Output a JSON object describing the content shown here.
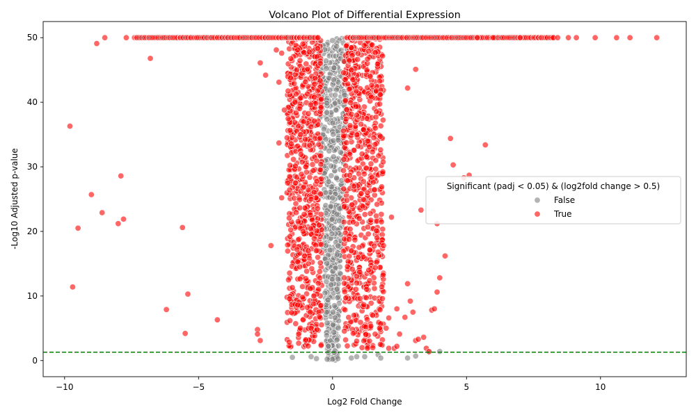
{
  "chart_data": {
    "type": "scatter",
    "title": "Volcano Plot of Differential Expression",
    "xlabel": "Log2 Fold Change",
    "ylabel": "-Log10 Adjusted p-value",
    "xlim": [
      -10.8,
      13.2
    ],
    "ylim": [
      -2.5,
      52.5
    ],
    "x_ticks": [
      -10,
      -5,
      0,
      5,
      10
    ],
    "y_ticks": [
      0,
      10,
      20,
      30,
      40,
      50
    ],
    "x_tick_labels": [
      "−10",
      "−5",
      "0",
      "5",
      "10"
    ],
    "y_tick_labels": [
      "0",
      "10",
      "20",
      "30",
      "40",
      "50"
    ],
    "grid": false,
    "threshold_line": {
      "y": 1.3,
      "color": "#008000",
      "style": "dashed"
    },
    "legend": {
      "title": "Significant (padj < 0.05) & (log2fold change > 0.5)",
      "placement": "center-right",
      "entries": [
        {
          "label": "False",
          "color": "#808080"
        },
        {
          "label": "True",
          "color": "#ff0000"
        }
      ]
    },
    "series": [
      {
        "name": "True",
        "color": "#ff0000",
        "points": [
          [
            -9.8,
            36.3
          ],
          [
            -9.7,
            11.4
          ],
          [
            -9.5,
            20.5
          ],
          [
            -9.0,
            25.7
          ],
          [
            -8.8,
            49.1
          ],
          [
            -8.6,
            22.9
          ],
          [
            -8.5,
            50
          ],
          [
            -8.0,
            21.2
          ],
          [
            -7.9,
            28.6
          ],
          [
            -7.8,
            21.9
          ],
          [
            -7.7,
            50
          ],
          [
            -6.8,
            46.8
          ],
          [
            -6.2,
            7.9
          ],
          [
            -5.6,
            20.6
          ],
          [
            -5.5,
            4.2
          ],
          [
            -5.4,
            10.3
          ],
          [
            -4.3,
            6.3
          ],
          [
            -2.8,
            4.8
          ],
          [
            -2.8,
            4.1
          ],
          [
            -2.7,
            3.1
          ],
          [
            -2.7,
            46.1
          ],
          [
            -2.5,
            44.2
          ],
          [
            -2.3,
            17.8
          ],
          [
            -2.1,
            48.1
          ],
          [
            -2.0,
            43.1
          ],
          [
            -2.0,
            33.7
          ],
          [
            -1.9,
            47.6
          ],
          [
            -1.9,
            25.2
          ],
          [
            -1.8,
            38.8
          ],
          [
            -1.7,
            34.5
          ],
          [
            -1.6,
            28.5
          ],
          [
            -1.5,
            11.3
          ],
          [
            -1.4,
            8.7
          ],
          [
            -1.3,
            8.6
          ],
          [
            -1.1,
            6.3
          ],
          [
            -1.0,
            3.2
          ],
          [
            0.9,
            3.0
          ],
          [
            1.1,
            2.0
          ],
          [
            1.3,
            1.9
          ],
          [
            1.5,
            2.0
          ],
          [
            1.5,
            7.0
          ],
          [
            1.6,
            14.4
          ],
          [
            1.7,
            16.8
          ],
          [
            1.9,
            17.8
          ],
          [
            2.0,
            5.0
          ],
          [
            2.1,
            6.6
          ],
          [
            2.1,
            1.9
          ],
          [
            2.2,
            22.2
          ],
          [
            2.3,
            1.9
          ],
          [
            2.4,
            2.2
          ],
          [
            2.4,
            8.0
          ],
          [
            2.5,
            4.1
          ],
          [
            2.7,
            6.7
          ],
          [
            2.8,
            11.9
          ],
          [
            2.8,
            42.2
          ],
          [
            2.9,
            9.2
          ],
          [
            3.0,
            7.5
          ],
          [
            3.1,
            3.1
          ],
          [
            3.2,
            3.3
          ],
          [
            3.1,
            45.1
          ],
          [
            3.3,
            23.3
          ],
          [
            3.4,
            3.6
          ],
          [
            3.5,
            1.9
          ],
          [
            3.6,
            1.4
          ],
          [
            3.7,
            7.8
          ],
          [
            3.8,
            8.0
          ],
          [
            3.9,
            10.6
          ],
          [
            3.9,
            21.2
          ],
          [
            4.0,
            12.8
          ],
          [
            4.2,
            16.2
          ],
          [
            4.4,
            34.4
          ],
          [
            4.5,
            30.3
          ],
          [
            4.9,
            28.3
          ],
          [
            5.1,
            28.7
          ],
          [
            5.7,
            33.4
          ],
          [
            5.4,
            50
          ],
          [
            6.0,
            50
          ],
          [
            7.0,
            50
          ],
          [
            8.4,
            50
          ],
          [
            8.8,
            50
          ],
          [
            9.1,
            50
          ],
          [
            9.8,
            50
          ],
          [
            10.6,
            50
          ],
          [
            11.1,
            50
          ],
          [
            12.1,
            50
          ],
          [
            -1.4,
            40.0
          ],
          [
            -1.2,
            35.0
          ],
          [
            -1.0,
            30.0
          ],
          [
            -0.8,
            25.0
          ],
          [
            -1.1,
            20.0
          ],
          [
            -0.9,
            15.0
          ],
          [
            -0.7,
            10.0
          ],
          [
            -0.8,
            5.0
          ],
          [
            0.7,
            45.0
          ],
          [
            0.9,
            38.0
          ],
          [
            1.1,
            32.0
          ],
          [
            0.8,
            27.0
          ],
          [
            1.0,
            22.0
          ],
          [
            0.7,
            17.0
          ],
          [
            0.9,
            12.0
          ],
          [
            0.8,
            7.0
          ],
          [
            1.4,
            44.0
          ],
          [
            1.6,
            36.0
          ],
          [
            1.3,
            26.0
          ]
        ],
        "top_band": {
          "y": 50,
          "x_ranges": [
            [
              -7.4,
              -0.5
            ],
            [
              0.5,
              8.3
            ]
          ]
        },
        "dense_bands": [
          {
            "x_range": [
              -1.7,
              -0.4
            ],
            "y_range": [
              2,
              50
            ]
          },
          {
            "x_range": [
              0.4,
              1.9
            ],
            "y_range": [
              2,
              50
            ]
          }
        ]
      },
      {
        "name": "False",
        "color": "#808080",
        "points": [
          [
            -1.5,
            0.5
          ],
          [
            -0.8,
            0.6
          ],
          [
            -0.6,
            0.3
          ],
          [
            0.7,
            0.4
          ],
          [
            0.9,
            0.6
          ],
          [
            1.2,
            0.6
          ],
          [
            1.7,
            0.9
          ],
          [
            1.8,
            0.4
          ],
          [
            2.8,
            0.4
          ],
          [
            3.1,
            0.7
          ],
          [
            3.6,
            1.3
          ],
          [
            4.0,
            1.4
          ],
          [
            0.0,
            0.2
          ],
          [
            0.2,
            0.3
          ],
          [
            -0.2,
            0.2
          ]
        ],
        "dense_bands": [
          {
            "x_range": [
              -0.6,
              0.6
            ],
            "y_range": [
              0,
              50
            ]
          }
        ]
      }
    ]
  }
}
